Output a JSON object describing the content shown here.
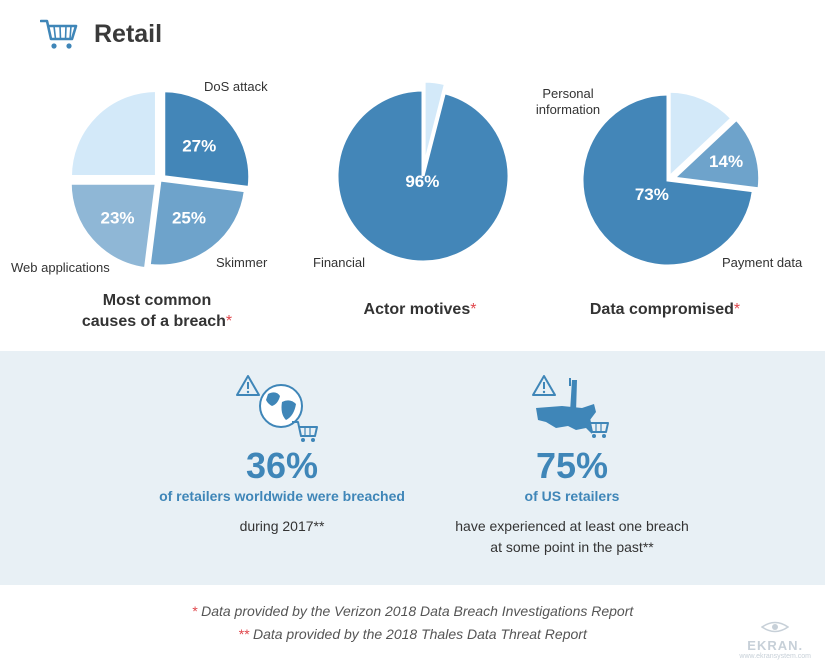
{
  "header": {
    "title": "Retail",
    "icon": "cart-icon"
  },
  "colors": {
    "dark": "#3f86b8",
    "mid": "#6ea3cb",
    "light": "#8fb7d6",
    "pale": "#d3e9f9",
    "accent_star": "#e0474c",
    "band": "#e8f0f5"
  },
  "chart_data": [
    {
      "type": "pie",
      "title": "Most common causes of a breach",
      "title_lines": [
        "Most common",
        "causes of a breach"
      ],
      "title_marker": "*",
      "slices": [
        {
          "label": "DoS attack",
          "value": 27,
          "value_label": "27%",
          "color": "#4386b8"
        },
        {
          "label": "Skimmer",
          "value": 25,
          "value_label": "25%",
          "color": "#6ea3cb"
        },
        {
          "label": "Web applications",
          "value": 23,
          "value_label": "23%",
          "color": "#8fb7d6"
        },
        {
          "label": "",
          "value": 25,
          "value_label": "",
          "color": "#d3e9f9"
        }
      ]
    },
    {
      "type": "pie",
      "title": "Actor motives",
      "title_marker": "*",
      "slices": [
        {
          "label": "Financial",
          "value": 96,
          "value_label": "96%",
          "color": "#4386b8"
        },
        {
          "label": "",
          "value": 4,
          "value_label": "",
          "color": "#d3e9f9"
        }
      ]
    },
    {
      "type": "pie",
      "title": "Data compromised",
      "title_marker": "*",
      "slices": [
        {
          "label": "Payment data",
          "value": 73,
          "value_label": "73%",
          "color": "#4386b8"
        },
        {
          "label": "Personal information",
          "value": 14,
          "value_label": "14%",
          "color": "#6ea3cb"
        },
        {
          "label": "",
          "value": 13,
          "value_label": "",
          "color": "#d3e9f9"
        }
      ]
    }
  ],
  "stats": [
    {
      "value": "36%",
      "subtitle": "of retailers worldwide were breached",
      "desc_lines": [
        "during 2017**"
      ],
      "icon": "globe-cart-warning-icon"
    },
    {
      "value": "75%",
      "subtitle": "of US retailers",
      "desc_lines": [
        "have experienced at least one breach",
        "at some point in the past**"
      ],
      "icon": "usa-map-cart-warning-icon"
    }
  ],
  "footnotes": [
    {
      "marker": "*",
      "text": " Data provided by the Verizon 2018 Data Breach Investigations Report"
    },
    {
      "marker": "**",
      "text": " Data provided by the 2018 Thales Data Threat Report"
    }
  ],
  "brand": {
    "name": "EKRAN.",
    "url": "www.ekransystem.com"
  }
}
